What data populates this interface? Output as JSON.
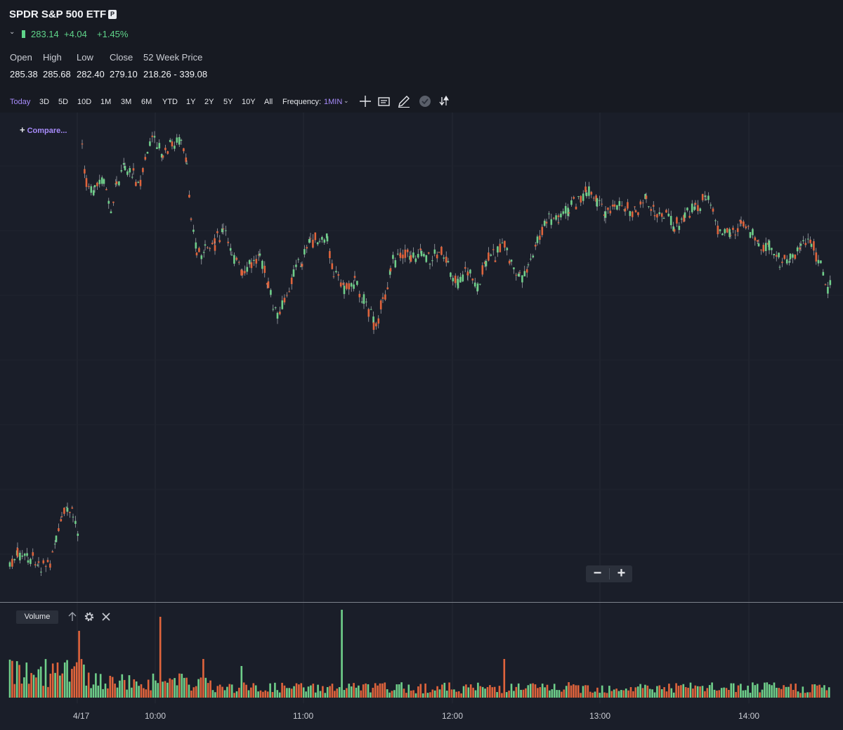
{
  "header": {
    "title": "SPDR S&P 500 ETF",
    "badge": "P",
    "price": "283.14",
    "change": "+4.04",
    "change_pct": "+1.45%",
    "up_color": "#5fd48a"
  },
  "stats": {
    "labels": [
      "Open",
      "High",
      "Low",
      "Close",
      "52 Week Price"
    ],
    "values": [
      "285.38",
      "285.68",
      "282.40",
      "279.10",
      "218.26 - 339.08"
    ]
  },
  "toolbar": {
    "ranges": [
      "Today",
      "3D",
      "5D",
      "10D",
      "1M",
      "3M",
      "6M",
      "YTD",
      "1Y",
      "2Y",
      "5Y",
      "10Y",
      "All"
    ],
    "active_range": "Today",
    "frequency_label": "Frequency:",
    "frequency_value": "1MIN",
    "tools": [
      "crosshair-icon",
      "note-icon",
      "draw-icon",
      "event-icon",
      "share-icon"
    ],
    "accent_color": "#a78bfa"
  },
  "chart": {
    "compare_label": "Compare...",
    "up_color": "#6fcf8a",
    "down_color": "#e0643c"
  },
  "volume_panel": {
    "label": "Volume"
  },
  "x_axis": {
    "ticks": [
      "4/17",
      "10:00",
      "11:00",
      "12:00",
      "13:00",
      "14:00"
    ]
  }
}
